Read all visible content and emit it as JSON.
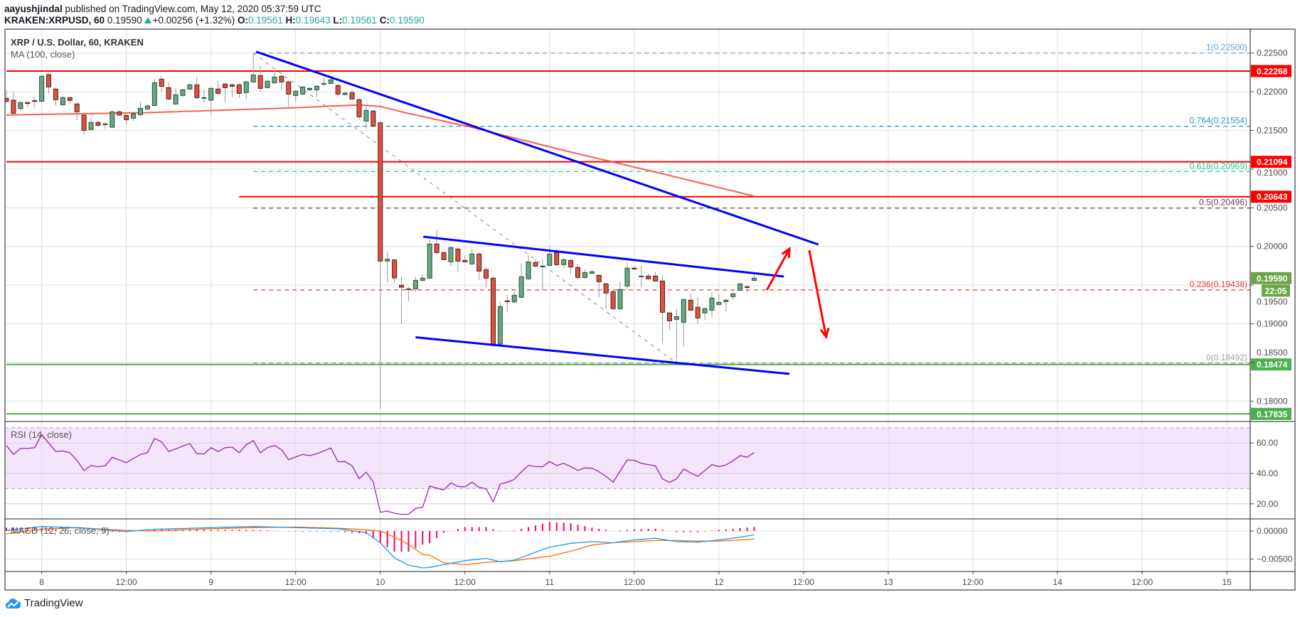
{
  "header": {
    "author": "aayushjindal",
    "published_text": "published on TradingView.com, May 12, 2020 05:37:59 UTC",
    "symbol": "KRAKEN:XRPUSD, 60",
    "last": "0.19590",
    "change": "+0.00256 (+1.32%)",
    "o_label": "O:",
    "o": "0.19561",
    "h_label": "H:",
    "h": "0.19643",
    "l_label": "L:",
    "l": "0.19561",
    "c_label": "C:",
    "c": "0.19590"
  },
  "legend": {
    "title": "XRP / U.S. Dollar, 60, KRAKEN",
    "ma": "MA (100, close)",
    "rsi": "RSI (14, close)",
    "macd": "MACD (12, 26, close, 9)"
  },
  "logo": {
    "text": "TradingView",
    "icon": "tradingview-cloud-icon"
  },
  "colors": {
    "up": "#6ba583",
    "up_border": "#225437",
    "down": "#d75442",
    "down_border": "#5b1a13",
    "wick": "#999999",
    "ma": "#f44336",
    "trend": "#0000ff",
    "level_red": "#ff0000",
    "level_green": "#4caf50",
    "rsi": "#9c27b0",
    "rsi_band": "#f3e5fc",
    "macd": "#2196f3",
    "signal": "#ff6d00",
    "hist": "#ff0055",
    "price_tag": "#6ba548"
  },
  "chart_data": {
    "type": "candlestick",
    "title": "XRP / U.S. Dollar, 60, KRAKEN",
    "interval_minutes": 60,
    "first_candle": "May 7 19:00",
    "ylim": [
      0.1775,
      0.2285
    ],
    "price_ticks": [
      {
        "v": 0.225,
        "label": "0.22500"
      },
      {
        "v": 0.22,
        "label": "0.22000"
      },
      {
        "v": 0.215,
        "label": "0.21500"
      },
      {
        "v": 0.21,
        "label": "0.21000"
      },
      {
        "v": 0.205,
        "label": "0.20500"
      },
      {
        "v": 0.2,
        "label": "0.20000"
      },
      {
        "v": 0.195,
        "label": "0.19500"
      },
      {
        "v": 0.19,
        "label": "0.19000"
      },
      {
        "v": 0.185,
        "label": "0.18500"
      },
      {
        "v": 0.18,
        "label": "0.18000"
      }
    ],
    "time_ticks": [
      {
        "i": 5,
        "label": "8"
      },
      {
        "i": 17,
        "label": "12:00"
      },
      {
        "i": 29,
        "label": "9"
      },
      {
        "i": 41,
        "label": "12:00"
      },
      {
        "i": 53,
        "label": "10"
      },
      {
        "i": 65,
        "label": "12:00"
      },
      {
        "i": 77,
        "label": "11"
      },
      {
        "i": 89,
        "label": "12:00"
      },
      {
        "i": 101,
        "label": "12"
      },
      {
        "i": 113,
        "label": "12:00"
      },
      {
        "i": 125,
        "label": "13"
      },
      {
        "i": 137,
        "label": "12:00"
      },
      {
        "i": 149,
        "label": "14"
      },
      {
        "i": 161,
        "label": "12:00"
      },
      {
        "i": 173,
        "label": "15"
      }
    ],
    "ohlc": [
      [
        0.21915,
        0.22022,
        0.21854,
        0.21878
      ],
      [
        0.21891,
        0.21998,
        0.21715,
        0.21722
      ],
      [
        0.21783,
        0.2188,
        0.21753,
        0.2186
      ],
      [
        0.2186,
        0.21885,
        0.21799,
        0.21848
      ],
      [
        0.21885,
        0.21937,
        0.21799,
        0.21878
      ],
      [
        0.21878,
        0.22222,
        0.21866,
        0.222
      ],
      [
        0.22222,
        0.22237,
        0.21976,
        0.22062
      ],
      [
        0.22035,
        0.2205,
        0.2182,
        0.21897
      ],
      [
        0.21832,
        0.21945,
        0.2182,
        0.21924
      ],
      [
        0.21924,
        0.2194,
        0.21842,
        0.21888
      ],
      [
        0.21842,
        0.2186,
        0.2163,
        0.21741
      ],
      [
        0.21698,
        0.21715,
        0.21446,
        0.21502
      ],
      [
        0.21511,
        0.21661,
        0.215,
        0.21603
      ],
      [
        0.21603,
        0.2162,
        0.2155,
        0.21566
      ],
      [
        0.21575,
        0.2161,
        0.21517,
        0.21585
      ],
      [
        0.21541,
        0.2176,
        0.2153,
        0.21741
      ],
      [
        0.21741,
        0.2176,
        0.2169,
        0.21698
      ],
      [
        0.21695,
        0.21705,
        0.21578,
        0.21639
      ],
      [
        0.21658,
        0.21746,
        0.21624,
        0.21716
      ],
      [
        0.21704,
        0.21863,
        0.2169,
        0.21786
      ],
      [
        0.21777,
        0.21835,
        0.21765,
        0.21817
      ],
      [
        0.21823,
        0.22169,
        0.2181,
        0.22117
      ],
      [
        0.22163,
        0.222,
        0.22001,
        0.22071
      ],
      [
        0.22053,
        0.2212,
        0.21895,
        0.21906
      ],
      [
        0.21842,
        0.22047,
        0.2183,
        0.21961
      ],
      [
        0.21952,
        0.2204,
        0.2194,
        0.22025
      ],
      [
        0.22035,
        0.22105,
        0.2202,
        0.2209
      ],
      [
        0.2209,
        0.22191,
        0.219,
        0.21924
      ],
      [
        0.21915,
        0.22032,
        0.2186,
        0.21924
      ],
      [
        0.21891,
        0.2206,
        0.2171,
        0.22044
      ],
      [
        0.22035,
        0.22139,
        0.21965,
        0.2198
      ],
      [
        0.22099,
        0.22115,
        0.21863,
        0.22053
      ],
      [
        0.2209,
        0.22105,
        0.21931,
        0.22071
      ],
      [
        0.2209,
        0.22105,
        0.21921,
        0.2198
      ],
      [
        0.21989,
        0.22151,
        0.21906,
        0.22127
      ],
      [
        0.22127,
        0.225,
        0.22115,
        0.22218
      ],
      [
        0.22209,
        0.22341,
        0.22001,
        0.22044
      ],
      [
        0.22053,
        0.22155,
        0.22053,
        0.22136
      ],
      [
        0.22117,
        0.22268,
        0.22099,
        0.22191
      ],
      [
        0.222,
        0.22215,
        0.22022,
        0.22127
      ],
      [
        0.22127,
        0.22145,
        0.21783,
        0.2197
      ],
      [
        0.21952,
        0.2202,
        0.21872,
        0.22007
      ],
      [
        0.2197,
        0.22075,
        0.2196,
        0.22062
      ],
      [
        0.22025,
        0.2206,
        0.2201,
        0.22044
      ],
      [
        0.22025,
        0.22085,
        0.21931,
        0.22071
      ],
      [
        0.22108,
        0.22182,
        0.22065,
        0.22108
      ],
      [
        0.22108,
        0.2217,
        0.22095,
        0.22154
      ],
      [
        0.22081,
        0.22108,
        0.21931,
        0.2197
      ],
      [
        0.21964,
        0.22,
        0.2195,
        0.21983
      ],
      [
        0.21989,
        0.22029,
        0.21895,
        0.21906
      ],
      [
        0.21897,
        0.21912,
        0.21639,
        0.21676
      ],
      [
        0.21621,
        0.21833,
        0.21517,
        0.21759
      ],
      [
        0.2175,
        0.21765,
        0.21545,
        0.21557
      ],
      [
        0.21599,
        0.2162,
        0.179,
        0.19811
      ],
      [
        0.19811,
        0.19924,
        0.19535,
        0.19835
      ],
      [
        0.19826,
        0.1984,
        0.19525,
        0.19593
      ],
      [
        0.19498,
        0.19608,
        0.18993,
        0.19473
      ],
      [
        0.19443,
        0.1948,
        0.19296,
        0.19452
      ],
      [
        0.19452,
        0.19608,
        0.19412,
        0.19562
      ],
      [
        0.19562,
        0.19639,
        0.1955,
        0.1959
      ],
      [
        0.1959,
        0.20092,
        0.1958,
        0.20031
      ],
      [
        0.20031,
        0.20209,
        0.1989,
        0.19921
      ],
      [
        0.19921,
        0.19935,
        0.19829,
        0.19829
      ],
      [
        0.19801,
        0.2,
        0.1974,
        0.19985
      ],
      [
        0.19967,
        0.1999,
        0.19663,
        0.19811
      ],
      [
        0.1982,
        0.19884,
        0.1979,
        0.19801
      ],
      [
        0.19774,
        0.1997,
        0.1976,
        0.19902
      ],
      [
        0.19902,
        0.1992,
        0.19562,
        0.19682
      ],
      [
        0.197,
        0.1974,
        0.19461,
        0.1959
      ],
      [
        0.1959,
        0.1961,
        0.187,
        0.18738
      ],
      [
        0.18738,
        0.1928,
        0.1872,
        0.19222
      ],
      [
        0.19296,
        0.19372,
        0.19158,
        0.19287
      ],
      [
        0.19283,
        0.19418,
        0.1927,
        0.19369
      ],
      [
        0.19342,
        0.1978,
        0.1933,
        0.19608
      ],
      [
        0.19581,
        0.19884,
        0.19562,
        0.19801
      ],
      [
        0.19792,
        0.19838,
        0.1973,
        0.19746
      ],
      [
        0.19746,
        0.19841,
        0.19434,
        0.19746
      ],
      [
        0.19755,
        0.2,
        0.1974,
        0.19902
      ],
      [
        0.19921,
        0.1997,
        0.1975,
        0.19765
      ],
      [
        0.19765,
        0.19845,
        0.19719,
        0.19829
      ],
      [
        0.1982,
        0.19835,
        0.19646,
        0.19734
      ],
      [
        0.19728,
        0.19777,
        0.1958,
        0.19599
      ],
      [
        0.19599,
        0.197,
        0.19585,
        0.19663
      ],
      [
        0.19654,
        0.197,
        0.1964,
        0.19672
      ],
      [
        0.19626,
        0.1964,
        0.19342,
        0.19544
      ],
      [
        0.19516,
        0.1953,
        0.19195,
        0.19397
      ],
      [
        0.19415,
        0.1943,
        0.1918,
        0.19195
      ],
      [
        0.19195,
        0.19547,
        0.1918,
        0.19443
      ],
      [
        0.19489,
        0.19795,
        0.19443,
        0.19719
      ],
      [
        0.19719,
        0.1975,
        0.197,
        0.19709
      ],
      [
        0.19617,
        0.19749,
        0.1947,
        0.19617
      ],
      [
        0.19617,
        0.1965,
        0.1956,
        0.19581
      ],
      [
        0.19617,
        0.19676,
        0.1954,
        0.19553
      ],
      [
        0.19553,
        0.19626,
        0.1875,
        0.19149
      ],
      [
        0.1914,
        0.1916,
        0.18919,
        0.19038
      ],
      [
        0.19057,
        0.1919,
        0.18492,
        0.19093
      ],
      [
        0.1902,
        0.1933,
        0.18713,
        0.19314
      ],
      [
        0.19305,
        0.1939,
        0.1916,
        0.19176
      ],
      [
        0.19213,
        0.19342,
        0.19,
        0.19075
      ],
      [
        0.1914,
        0.1921,
        0.1905,
        0.19195
      ],
      [
        0.19176,
        0.19406,
        0.1908,
        0.19332
      ],
      [
        0.1925,
        0.1939,
        0.19235,
        0.19277
      ],
      [
        0.19286,
        0.1932,
        0.19158,
        0.19305
      ],
      [
        0.19351,
        0.1941,
        0.19296,
        0.19387
      ],
      [
        0.19433,
        0.1953,
        0.1942,
        0.19516
      ],
      [
        0.19479,
        0.195,
        0.194,
        0.1947
      ],
      [
        0.19561,
        0.19643,
        0.19561,
        0.1959
      ]
    ],
    "ma100": [
      [
        0,
        0.217
      ],
      [
        20,
        0.2173
      ],
      [
        40,
        0.2179
      ],
      [
        50,
        0.2183
      ],
      [
        53,
        0.2181
      ],
      [
        57,
        0.2172
      ],
      [
        66,
        0.2154
      ],
      [
        80,
        0.2122
      ],
      [
        93,
        0.2094
      ],
      [
        106,
        0.2065
      ]
    ],
    "levels": [
      {
        "v": 0.22268,
        "label": "0.22268",
        "color": "#ff0000",
        "from": 0
      },
      {
        "v": 0.21094,
        "label": "0.21094",
        "color": "#ff0000",
        "from": 0
      },
      {
        "v": 0.20643,
        "label": "0.20643",
        "color": "#ff0000",
        "from": 33
      },
      {
        "v": 0.18474,
        "label": "0.18474",
        "color": "#4caf50",
        "from": 0
      },
      {
        "v": 0.17835,
        "label": "0.17835",
        "color": "#4caf50",
        "from": 0
      }
    ],
    "fib": {
      "from": 35,
      "to_low_index": 95,
      "levels": [
        {
          "ratio": "1",
          "v": 0.225,
          "label": "1(0.22500)",
          "color": "#5a9fd4"
        },
        {
          "ratio": "0.764",
          "v": 0.21554,
          "label": "0.764(0.21554)",
          "color": "#2196c8"
        },
        {
          "ratio": "0.618",
          "v": 0.20969,
          "label": "0.618(0.20969)",
          "color": "#20c997"
        },
        {
          "ratio": "0.5",
          "v": 0.20496,
          "label": "0.5(0.20496)",
          "color": "#6d3b50"
        },
        {
          "ratio": "0.236",
          "v": 0.19438,
          "label": "0.236(0.19438)",
          "color": "#e53935"
        },
        {
          "ratio": "0",
          "v": 0.18492,
          "label": "0(0.18492)",
          "color": "#9e9e9e"
        }
      ]
    },
    "trendlines": [
      {
        "name": "major-bearish-trendline",
        "p1": [
          35.4,
          0.22518
        ],
        "p2": [
          115.1,
          0.20025
        ]
      },
      {
        "name": "channel-upper-trendline",
        "p1": [
          59.1,
          0.20126
        ],
        "p2": [
          110.2,
          0.19611
        ]
      },
      {
        "name": "channel-lower-trendline",
        "p1": [
          58.0,
          0.18825
        ],
        "p2": [
          111.0,
          0.18352
        ]
      }
    ],
    "arrows": [
      {
        "name": "upside-arrow",
        "p1": [
          107.8,
          0.19437
        ],
        "p2": [
          111.0,
          0.1997
        ]
      },
      {
        "name": "downside-arrow",
        "p1": [
          113.8,
          0.19951
        ],
        "p2": [
          116.2,
          0.1883
        ]
      }
    ],
    "current_price": {
      "v": 0.1959,
      "label": "0.19590",
      "countdown": "22:05"
    },
    "rsi": {
      "ticks": [
        {
          "v": 60,
          "label": "60.00"
        },
        {
          "v": 40,
          "label": "40.00"
        },
        {
          "v": 20,
          "label": "20.00"
        }
      ],
      "band": [
        30,
        70
      ],
      "values": [
        58.3,
        52.5,
        56.4,
        56.4,
        56.9,
        65.5,
        60,
        54.4,
        54.8,
        53.6,
        48.6,
        41.9,
        45.2,
        44.4,
        45,
        50.6,
        48.9,
        47,
        49.8,
        52.5,
        53.6,
        63,
        60.8,
        54.4,
        56.1,
        58,
        59.5,
        53,
        52.8,
        56.9,
        54.4,
        56.9,
        57.3,
        53.6,
        58.8,
        61.6,
        53.6,
        56.9,
        58.4,
        55.6,
        49,
        50.9,
        52.5,
        51.7,
        53,
        54.8,
        56.7,
        47.7,
        47.8,
        45,
        36.6,
        40.8,
        34.5,
        14.5,
        15.3,
        13.8,
        13.1,
        13.1,
        17,
        17.8,
        31.7,
        30.3,
        29.1,
        33.8,
        31.4,
        31.1,
        34.2,
        30.9,
        29.8,
        21.3,
        33,
        34.2,
        36.1,
        41.1,
        45.2,
        44.5,
        44.4,
        47.8,
        45.2,
        46.6,
        44.4,
        42,
        43.6,
        43.4,
        41.1,
        38.1,
        34.2,
        41.6,
        48.9,
        48.6,
        46.6,
        45.8,
        45,
        36.4,
        34.2,
        36.4,
        43,
        40.3,
        38.1,
        41.9,
        45.8,
        44.5,
        45.5,
        48.3,
        51.7,
        50.6,
        53.8
      ]
    },
    "macd": {
      "ticks": [
        {
          "v": 0,
          "label": "0.00000"
        },
        {
          "v": -0.005,
          "label": "−0.00500"
        }
      ],
      "macd": [
        [
          0,
          0.0001
        ],
        [
          5,
          0.0008
        ],
        [
          10,
          0.0006
        ],
        [
          17,
          -0.0001
        ],
        [
          21,
          0.0003
        ],
        [
          29,
          0.0006
        ],
        [
          35,
          0.0008
        ],
        [
          41,
          0.0006
        ],
        [
          47,
          0.0004
        ],
        [
          51,
          -0.0003
        ],
        [
          53,
          -0.0021
        ],
        [
          55,
          -0.0048
        ],
        [
          57,
          -0.0061
        ],
        [
          59,
          -0.0066
        ],
        [
          60,
          -0.0065
        ],
        [
          65,
          -0.0053
        ],
        [
          68,
          -0.0049
        ],
        [
          70,
          -0.0055
        ],
        [
          72,
          -0.0052
        ],
        [
          75,
          -0.0038
        ],
        [
          77,
          -0.0029
        ],
        [
          80,
          -0.0022
        ],
        [
          83,
          -0.0019
        ],
        [
          86,
          -0.0021
        ],
        [
          89,
          -0.0016
        ],
        [
          92,
          -0.0013
        ],
        [
          95,
          -0.0019
        ],
        [
          98,
          -0.002
        ],
        [
          101,
          -0.0016
        ],
        [
          104,
          -0.0011
        ],
        [
          106,
          -0.0007
        ]
      ],
      "signal": [
        [
          0,
          -0.0005
        ],
        [
          5,
          0.0003
        ],
        [
          10,
          0.0006
        ],
        [
          17,
          0.0001
        ],
        [
          21,
          0.0
        ],
        [
          29,
          0.0004
        ],
        [
          35,
          0.0006
        ],
        [
          41,
          0.0007
        ],
        [
          47,
          0.0005
        ],
        [
          51,
          0.0002
        ],
        [
          53,
          0.0
        ],
        [
          55,
          -0.0011
        ],
        [
          57,
          -0.0024
        ],
        [
          59,
          -0.0042
        ],
        [
          60,
          -0.0043
        ],
        [
          62,
          -0.0057
        ],
        [
          65,
          -0.006
        ],
        [
          68,
          -0.0056
        ],
        [
          72,
          -0.0053
        ],
        [
          75,
          -0.0048
        ],
        [
          77,
          -0.0045
        ],
        [
          80,
          -0.0036
        ],
        [
          83,
          -0.0025
        ],
        [
          86,
          -0.0021
        ],
        [
          89,
          -0.0019
        ],
        [
          92,
          -0.0017
        ],
        [
          95,
          -0.0017
        ],
        [
          98,
          -0.0018
        ],
        [
          101,
          -0.0018
        ],
        [
          104,
          -0.0016
        ],
        [
          106,
          -0.0014
        ]
      ]
    }
  }
}
